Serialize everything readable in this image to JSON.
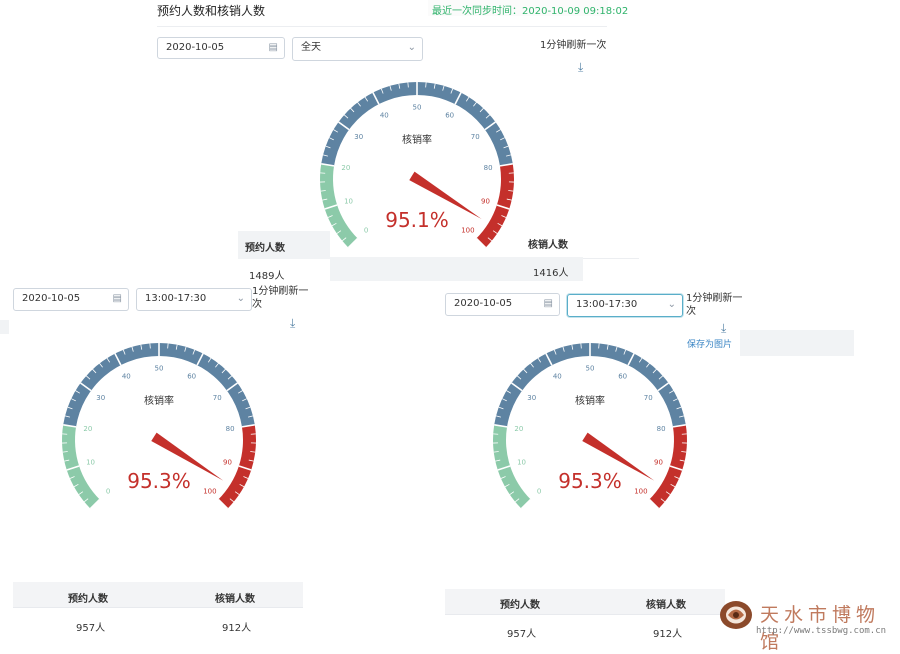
{
  "header": {
    "title": "预约人数和核销人数",
    "last_sync": "最近一次同步时间：2020-10-09 09:18:02"
  },
  "panels": [
    {
      "date": "2020-10-05",
      "time_range": "全天",
      "refresh_label": "1分钟刷新一次",
      "gauge": {
        "label": "核销率",
        "rate": 95.1,
        "display": "95.1%"
      },
      "table": {
        "col1": "预约人数",
        "col2": "核销人数",
        "val1": "1489人",
        "val2": "1416人"
      }
    },
    {
      "date": "2020-10-05",
      "time_range": "13:00-17:30",
      "refresh_label_line1": "1分钟刷新一",
      "refresh_label_line2": "次",
      "gauge": {
        "label": "核销率",
        "rate": 95.3,
        "display": "95.3%"
      },
      "table": {
        "col1": "预约人数",
        "col2": "核销人数",
        "val1": "957人",
        "val2": "912人"
      }
    },
    {
      "date": "2020-10-05",
      "time_range": "13:00-17:30",
      "refresh_label_line1": "1分钟刷新一",
      "refresh_label_line2": "次",
      "save_label": "保存为图片",
      "gauge": {
        "label": "核销率",
        "rate": 95.3,
        "display": "95.3%"
      },
      "table": {
        "col1": "预约人数",
        "col2": "核销人数",
        "val1": "957人",
        "val2": "912人"
      }
    }
  ],
  "gauge_scale": {
    "min": 0,
    "max": 100,
    "ticks": [
      "0",
      "10",
      "20",
      "30",
      "40",
      "50",
      "60",
      "70",
      "80",
      "90",
      "100"
    ],
    "bands": [
      {
        "from": 0,
        "to": 20,
        "color": "#8ccaa9"
      },
      {
        "from": 20,
        "to": 80,
        "color": "#5e83a2"
      },
      {
        "from": 80,
        "to": 100,
        "color": "#c4302b"
      }
    ]
  },
  "watermark": {
    "name": "天水市博物馆",
    "url": "http://www.tssbwg.com.cn"
  },
  "icons": {
    "calendar": "calendar-icon",
    "dropdown": "chevron-down-icon",
    "download": "download-icon"
  }
}
